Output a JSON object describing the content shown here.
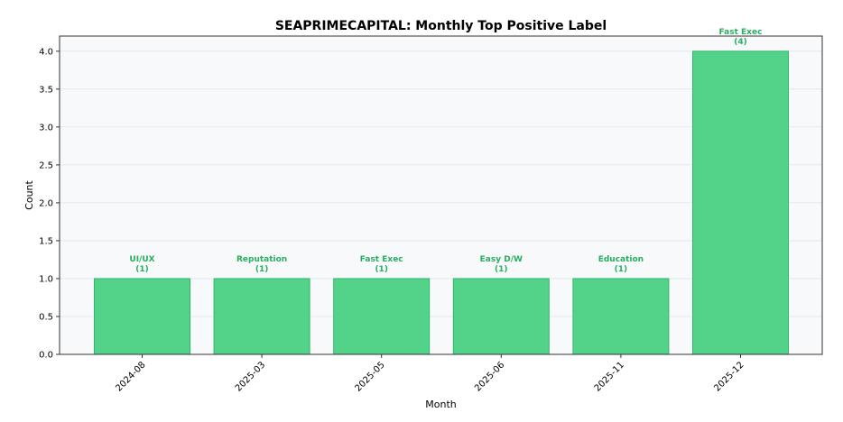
{
  "chart_data": {
    "type": "bar",
    "title": "SEAPRIMECAPITAL: Monthly Top Positive Label",
    "xlabel": "Month",
    "ylabel": "Count",
    "categories": [
      "2024-08",
      "2025-03",
      "2025-05",
      "2025-06",
      "2025-11",
      "2025-12"
    ],
    "values": [
      1,
      1,
      1,
      1,
      1,
      4
    ],
    "bar_labels": [
      "UI/UX",
      "Reputation",
      "Fast Exec",
      "Easy D/W",
      "Education",
      "Fast Exec"
    ],
    "value_labels": [
      "(1)",
      "(1)",
      "(1)",
      "(1)",
      "(1)",
      "(4)"
    ],
    "ylim": [
      0,
      4.2
    ],
    "yticks": [
      "0.0",
      "0.5",
      "1.0",
      "1.5",
      "2.0",
      "2.5",
      "3.0",
      "3.5",
      "4.0"
    ],
    "grid": true,
    "colors": {
      "bar_fill": "#52d389",
      "bar_edge": "#2fb86a",
      "label_text": "#27ae60",
      "plot_bg": "#f8f9fb",
      "grid": "#dfe3e8"
    }
  }
}
